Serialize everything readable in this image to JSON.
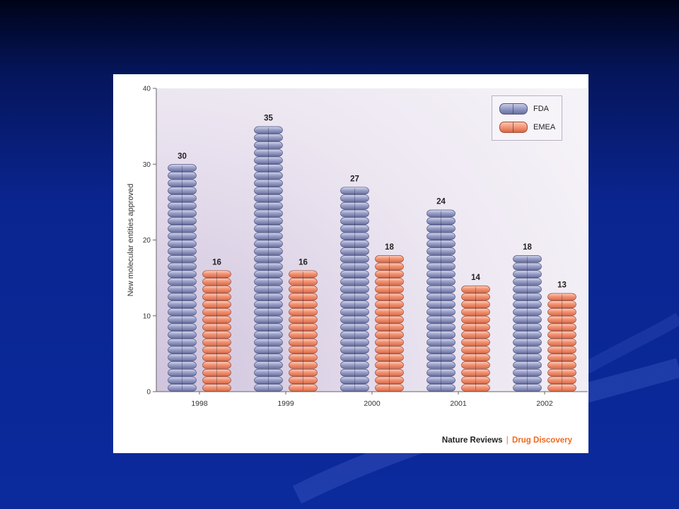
{
  "colors": {
    "fda": "#9aa1c9",
    "fda_dark": "#6a6f9c",
    "emea": "#f39373",
    "emea_dark": "#d76b4a",
    "credit_brand": "#ee6a1f"
  },
  "legend": {
    "items": [
      {
        "label": "FDA",
        "color": "#9aa1c9"
      },
      {
        "label": "EMEA",
        "color": "#f39373"
      }
    ]
  },
  "credit": {
    "publisher": "Nature Reviews",
    "separator": "|",
    "journal": "Drug Discovery"
  },
  "chart_data": {
    "type": "bar",
    "ylabel": "New molecular entities approved",
    "xlabel": "",
    "ylim": [
      0,
      40
    ],
    "yticks": [
      0,
      10,
      20,
      30,
      40
    ],
    "categories": [
      "1998",
      "1999",
      "2000",
      "2001",
      "2002"
    ],
    "series": [
      {
        "name": "FDA",
        "values": [
          30,
          35,
          27,
          24,
          18
        ]
      },
      {
        "name": "EMEA",
        "values": [
          16,
          16,
          18,
          14,
          13
        ]
      }
    ],
    "legend_position": "top-right"
  }
}
